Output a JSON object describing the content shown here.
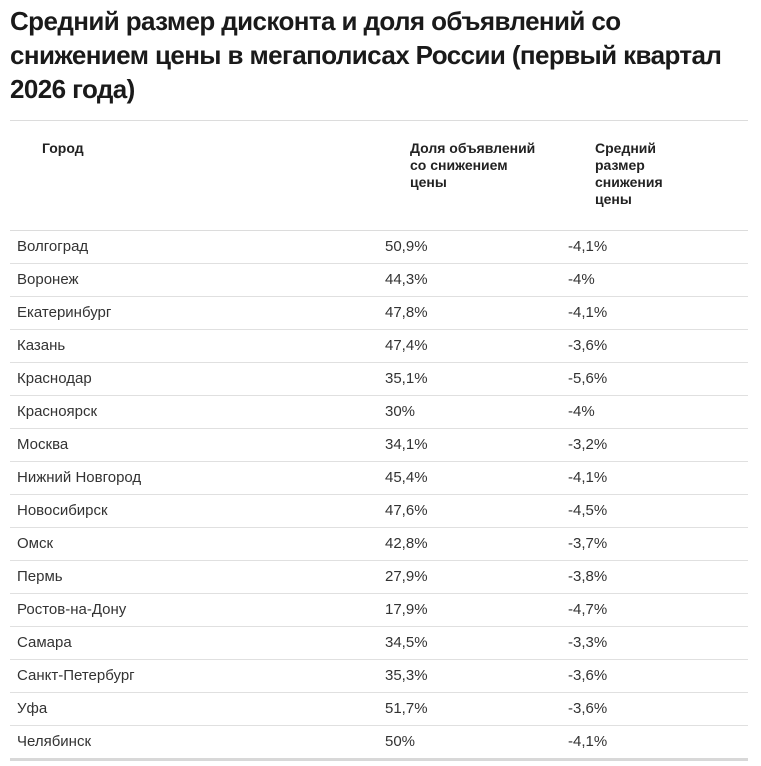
{
  "title": "Средний размер дисконта и доля объявлений со снижением цены в мегаполисах России (первый квартал 2026 года)",
  "table": {
    "headers": [
      "Город",
      "Доля объявлений со снижением цены",
      "Средний размер снижения цены"
    ],
    "rows": [
      [
        "Волгоград",
        "50,9%",
        "-4,1%"
      ],
      [
        "Воронеж",
        "44,3%",
        "-4%"
      ],
      [
        "Екатеринбург",
        "47,8%",
        "-4,1%"
      ],
      [
        "Казань",
        "47,4%",
        "-3,6%"
      ],
      [
        "Краснодар",
        "35,1%",
        "-5,6%"
      ],
      [
        "Красноярск",
        "30%",
        "-4%"
      ],
      [
        "Москва",
        "34,1%",
        "-3,2%"
      ],
      [
        "Нижний Новгород",
        "45,4%",
        "-4,1%"
      ],
      [
        "Новосибирск",
        "47,6%",
        "-4,5%"
      ],
      [
        "Омск",
        "42,8%",
        "-3,7%"
      ],
      [
        "Пермь",
        "27,9%",
        "-3,8%"
      ],
      [
        "Ростов-на-Дону",
        "17,9%",
        "-4,7%"
      ],
      [
        "Самара",
        "34,5%",
        "-3,3%"
      ],
      [
        "Санкт-Петербург",
        "35,3%",
        "-3,6%"
      ],
      [
        "Уфа",
        "51,7%",
        "-3,6%"
      ],
      [
        "Челябинск",
        "50%",
        "-4,1%"
      ]
    ]
  }
}
